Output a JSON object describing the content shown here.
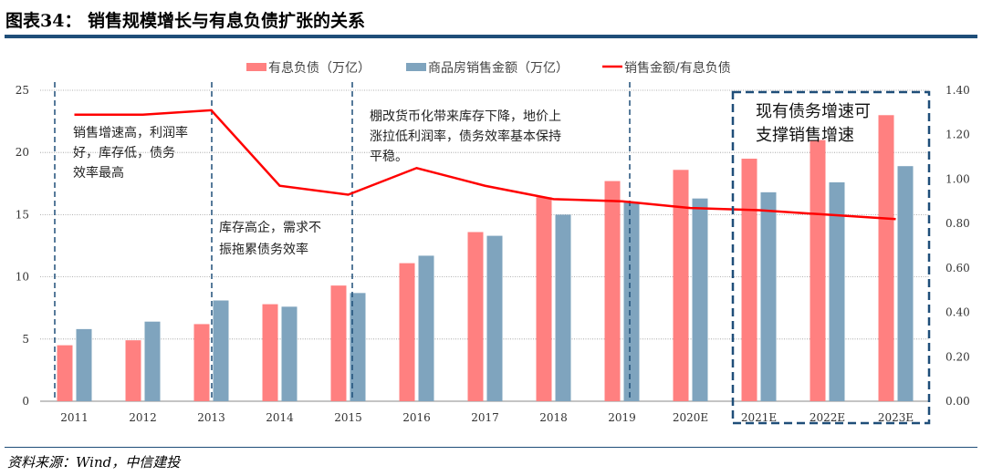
{
  "title": "图表34： 销售规模增长与有息负债扩张的关系",
  "source": "资料来源：Wind，中信建投",
  "chart_data": {
    "type": "bar+line",
    "categories": [
      "2011",
      "2012",
      "2013",
      "2014",
      "2015",
      "2016",
      "2017",
      "2018",
      "2019",
      "2020E",
      "2021E",
      "2022E",
      "2023E"
    ],
    "series": [
      {
        "name": "有息负债（万亿）",
        "type": "bar",
        "axis": "left",
        "color": "#ff8080",
        "values": [
          4.5,
          4.9,
          6.2,
          7.8,
          9.3,
          11.1,
          13.6,
          16.4,
          17.7,
          18.6,
          19.5,
          21.0,
          23.0
        ]
      },
      {
        "name": "商品房销售金额（万亿）",
        "type": "bar",
        "axis": "left",
        "color": "#7fa4be",
        "values": [
          5.8,
          6.4,
          8.1,
          7.6,
          8.7,
          11.7,
          13.3,
          15.0,
          16.0,
          16.3,
          16.8,
          17.6,
          18.9
        ]
      },
      {
        "name": "销售金额/有息负债",
        "type": "line",
        "axis": "right",
        "color": "#ff0000",
        "values": [
          1.29,
          1.29,
          1.31,
          0.97,
          0.93,
          1.05,
          0.97,
          0.91,
          0.9,
          0.87,
          0.86,
          0.84,
          0.82
        ]
      }
    ],
    "ylim_left": [
      0,
      25
    ],
    "yticks_left": [
      "0",
      "5",
      "10",
      "15",
      "20",
      "25"
    ],
    "ylim_right": [
      0,
      1.4
    ],
    "yticks_right": [
      "0.00",
      "0.20",
      "0.40",
      "0.60",
      "0.80",
      "1.00",
      "1.20",
      "1.40"
    ],
    "legend_position": "top",
    "annotations": [
      [
        "销售增速高，利润率",
        "好，库存低，债务",
        "效率最高"
      ],
      [
        "库存高企，需求不",
        "振拖累债务效率"
      ],
      [
        "棚改货币化带来库存下降，地价上",
        "涨拉低利润率，债务效率基本保持",
        "平稳。"
      ],
      [
        "现有债务增速可",
        "支撑销售增速"
      ]
    ]
  }
}
